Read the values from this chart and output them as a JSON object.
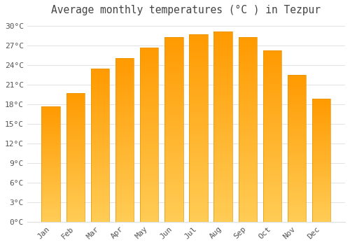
{
  "title": "Average monthly temperatures (°C ) in Tezpur",
  "months": [
    "Jan",
    "Feb",
    "Mar",
    "Apr",
    "May",
    "Jun",
    "Jul",
    "Aug",
    "Sep",
    "Oct",
    "Nov",
    "Dec"
  ],
  "temperatures": [
    17.7,
    19.7,
    23.4,
    25.0,
    26.6,
    28.2,
    28.7,
    29.1,
    28.2,
    26.2,
    22.5,
    18.8
  ],
  "bar_color": "#FFA726",
  "bar_edge_color": "#E59400",
  "background_color": "#ffffff",
  "grid_color": "#dddddd",
  "ylim": [
    0,
    31
  ],
  "yticks": [
    0,
    3,
    6,
    9,
    12,
    15,
    18,
    21,
    24,
    27,
    30
  ],
  "ytick_labels": [
    "0°C",
    "3°C",
    "6°C",
    "9°C",
    "12°C",
    "15°C",
    "18°C",
    "21°C",
    "24°C",
    "27°C",
    "30°C"
  ],
  "title_fontsize": 10.5,
  "tick_fontsize": 8,
  "title_color": "#444444",
  "tick_color": "#555555",
  "bar_width": 0.75
}
